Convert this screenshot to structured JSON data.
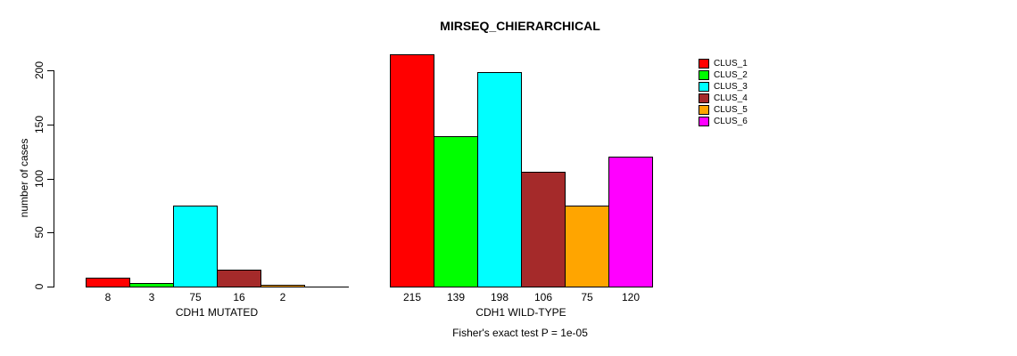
{
  "chart_data": {
    "type": "bar",
    "title": "MIRSEQ_CHIERARCHICAL",
    "ylabel": "number of cases",
    "xlabel": "",
    "caption": "Fisher's exact test P = 1e-05",
    "ylim": [
      0,
      200
    ],
    "yticks": [
      0,
      50,
      100,
      150,
      200
    ],
    "grid": false,
    "legend_position": "right",
    "legend": [
      "CLUS_1",
      "CLUS_2",
      "CLUS_3",
      "CLUS_4",
      "CLUS_5",
      "CLUS_6"
    ],
    "series_colors": [
      "#FF0000",
      "#00FF00",
      "#00FFFF",
      "#A52A2A",
      "#FFA500",
      "#FF00FF"
    ],
    "groups": [
      {
        "label": "CDH1 MUTATED",
        "values": [
          8,
          3,
          75,
          16,
          2,
          0
        ],
        "bar_labels": [
          "8",
          "3",
          "75",
          "16",
          "2",
          ""
        ]
      },
      {
        "label": "CDH1 WILD-TYPE",
        "values": [
          215,
          139,
          198,
          106,
          75,
          120
        ],
        "bar_labels": [
          "215",
          "139",
          "198",
          "106",
          "75",
          "120"
        ]
      }
    ]
  }
}
